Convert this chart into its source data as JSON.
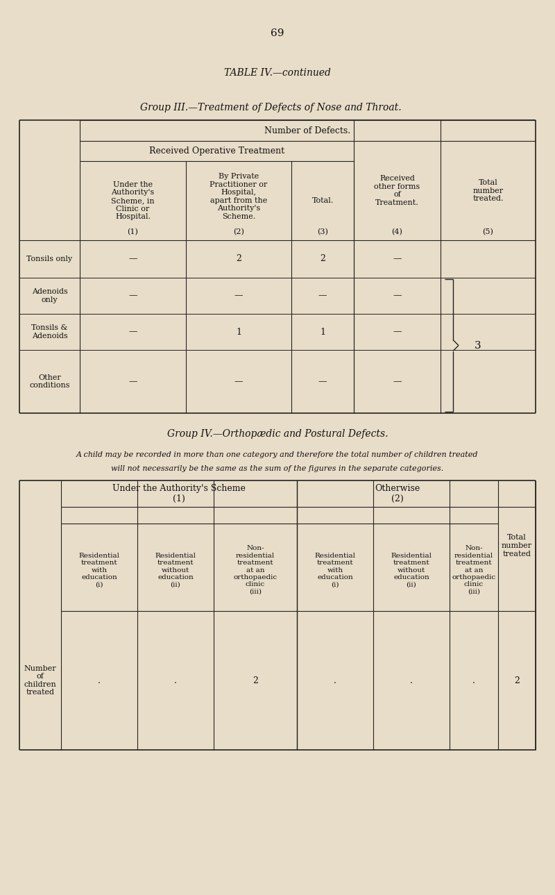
{
  "bg_color": "#e8ddc8",
  "page_number": "69",
  "table_title": "TABLE IV.—continued",
  "group3_title": "Group III.—Treatment of Defects of Nose and Throat.",
  "group4_title": "Group IV.—Orthopædic and Postural Defects.",
  "group4_note_line1": "A child may be recorded in more than one category and therefore the total number of children treated",
  "group4_note_line2": "will not necessarily be the same as the sum of the figures in the separate categories.",
  "group3_header_row1": "Number of Defects.",
  "group3_header_row2": "Received Operative Treatment",
  "group3_col1_text": "Under the\nAuthority's\nScheme, in\nClinic or\nHospital.",
  "group3_col1_num": "(1)",
  "group3_col2_text": "By Private\nPractitioner or\nHospital,\napart from the\nAuthority's\nScheme.",
  "group3_col2_num": "(2)",
  "group3_col3": "Total.",
  "group3_col3_num": "(3)",
  "group3_col4_text": "Received\nother forms\nof\nTreatment.",
  "group3_col4_num": "(4)",
  "group3_col5_text": "Total\nnumber\ntreated.",
  "group3_col5_num": "(5)",
  "group3_rows": [
    {
      "label": "Tonsils only",
      "c1": "—",
      "c2": "2",
      "c3": "2",
      "c4": "—"
    },
    {
      "label": "Adenoids\nonly",
      "c1": "—",
      "c2": "—",
      "c3": "—",
      "c4": "—"
    },
    {
      "label": "Tonsils &\nAdenoids",
      "c1": "—",
      "c2": "1",
      "c3": "1",
      "c4": "—"
    },
    {
      "label": "Other\nconditions",
      "c1": "—",
      "c2": "—",
      "c3": "—",
      "c4": "—"
    }
  ],
  "group3_brace_value": "3",
  "group4_scheme_header": "Under the Authority's Scheme\n(1)",
  "group4_otherwise_header": "Otherwise\n(2)",
  "group4_sub_cols": [
    "Residential\ntreatment\nwith\neducation\n(i)",
    "Residential\ntreatment\nwithout\neducation\n(ii)",
    "Non-\nresidential\ntreatment\nat an\northopaedic\nclinic\n(iii)",
    "Residential\ntreatment\nwith\neducation\n(i)",
    "Residential\ntreatment\nwithout\neducation\n(ii)",
    "Non-\nresidential\ntreatment\nat an\northopaedic\nclinic\n(iii)"
  ],
  "group4_total_col": "Total\nnumber\ntreated",
  "group4_row_label": "Number\nof\nchildren\ntreated",
  "group4_row_values": [
    ".",
    ".",
    "2",
    ".",
    ".",
    ".",
    "2"
  ]
}
